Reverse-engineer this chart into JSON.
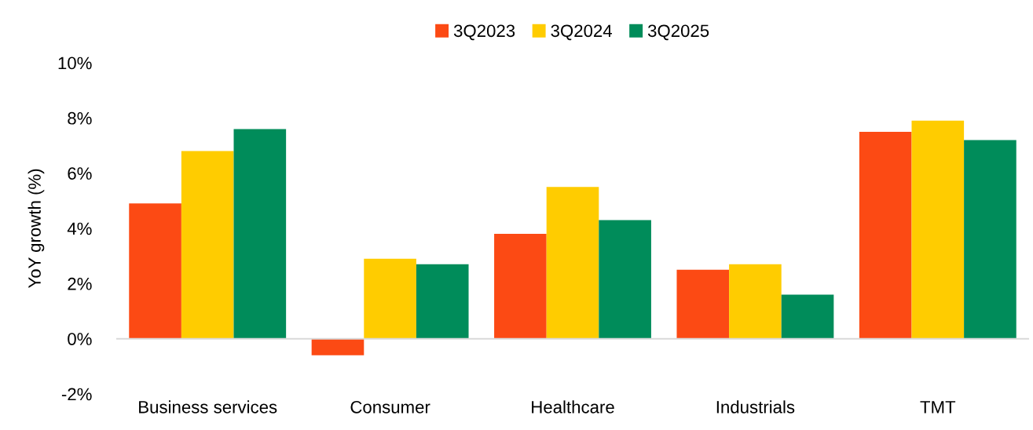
{
  "chart_data": {
    "type": "bar",
    "ylabel": "YoY growth (%)",
    "categories": [
      "Business services",
      "Consumer",
      "Healthcare",
      "Industrials",
      "TMT"
    ],
    "series": [
      {
        "name": "3Q2023",
        "color": "#fc4a14",
        "values": [
          4.9,
          -0.6,
          3.8,
          2.5,
          7.5
        ]
      },
      {
        "name": "3Q2024",
        "color": "#ffcc00",
        "values": [
          6.8,
          2.9,
          5.5,
          2.7,
          7.9
        ]
      },
      {
        "name": "3Q2025",
        "color": "#008c5a",
        "values": [
          7.6,
          2.7,
          4.3,
          1.6,
          7.2
        ]
      }
    ],
    "ylim": [
      -2,
      10
    ],
    "yticks": [
      {
        "value": -2,
        "label": "-2%"
      },
      {
        "value": 0,
        "label": "0%"
      },
      {
        "value": 2,
        "label": "2%"
      },
      {
        "value": 4,
        "label": "4%"
      },
      {
        "value": 6,
        "label": "6%"
      },
      {
        "value": 8,
        "label": "8%"
      },
      {
        "value": 10,
        "label": "10%"
      }
    ],
    "ref_lines": [
      {
        "axis": "y",
        "value": 0,
        "color": "#d9d9d9"
      }
    ],
    "grid": false,
    "legend": "top"
  }
}
